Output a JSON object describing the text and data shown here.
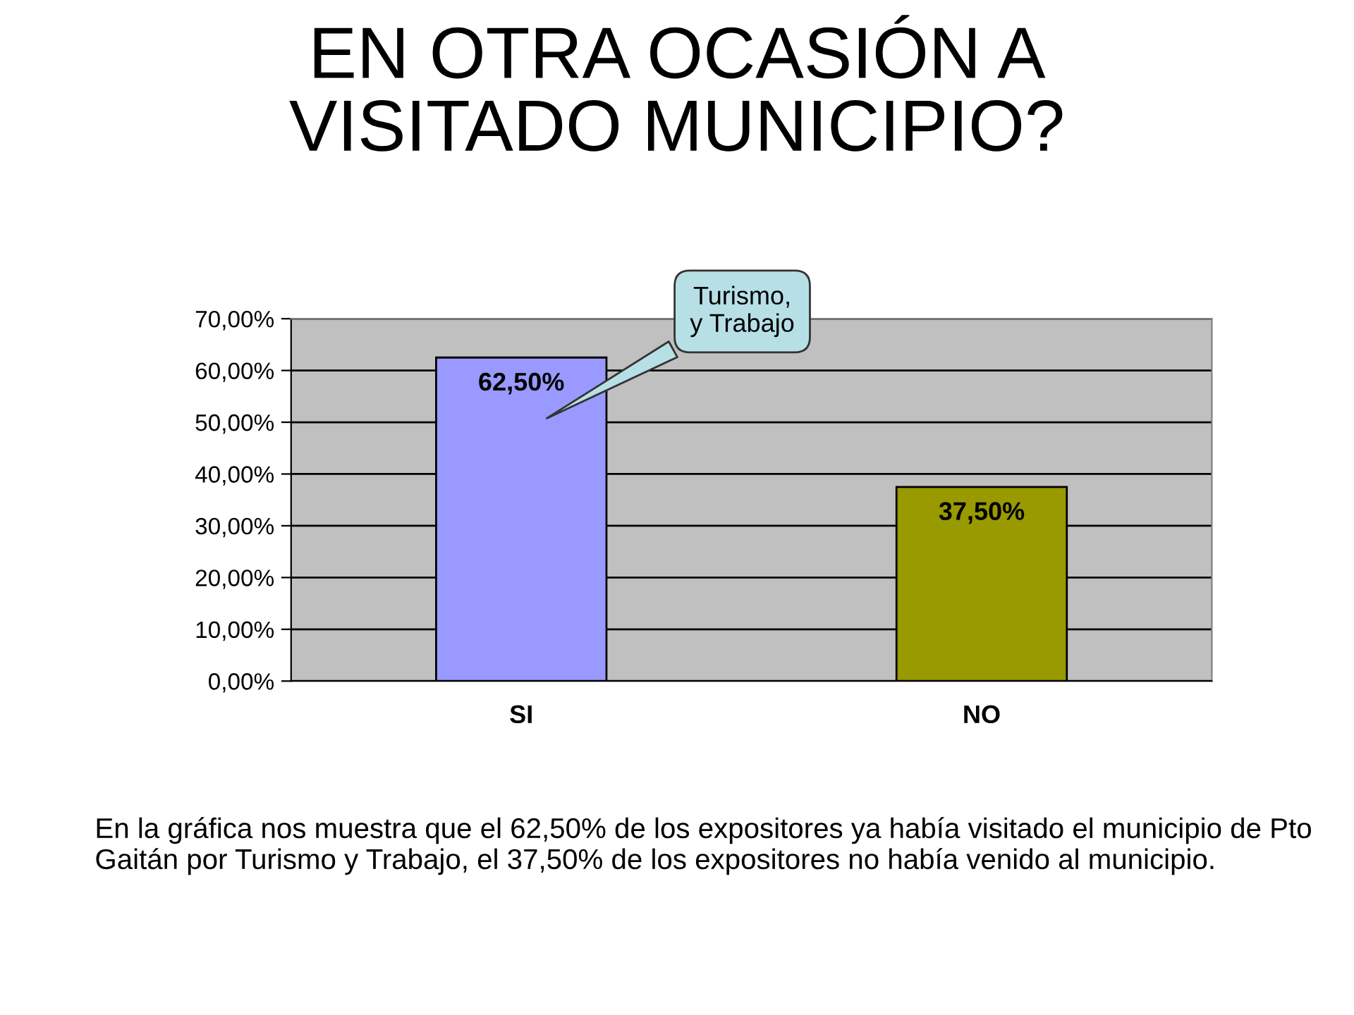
{
  "chart_data": {
    "type": "bar",
    "title": "EN OTRA OCASIÓN A\nVISITADO MUNICIPIO?",
    "categories": [
      "SI",
      "NO"
    ],
    "values": [
      62.5,
      37.5
    ],
    "colors": [
      "#9999ff",
      "#999900"
    ],
    "value_labels": [
      "62,50%",
      "37,50%"
    ],
    "ylim": [
      0,
      70
    ],
    "yticks": [
      {
        "value": 0,
        "label": "0,00%"
      },
      {
        "value": 10,
        "label": "10,00%"
      },
      {
        "value": 20,
        "label": "20,00%"
      },
      {
        "value": 30,
        "label": "30,00%"
      },
      {
        "value": 40,
        "label": "40,00%"
      },
      {
        "value": 50,
        "label": "50,00%"
      },
      {
        "value": 60,
        "label": "60,00%"
      },
      {
        "value": 70,
        "label": "70,00%"
      }
    ],
    "grid": "y",
    "legend": false,
    "annotations": [
      "Turismo,\ny Trabajo",
      "En la gráfica nos muestra que el 62,50% de los expositores ya había visitado el municipio de Pto Gaitán por Turismo y Trabajo, el 37,50% de los expositores no había venido al municipio."
    ]
  }
}
